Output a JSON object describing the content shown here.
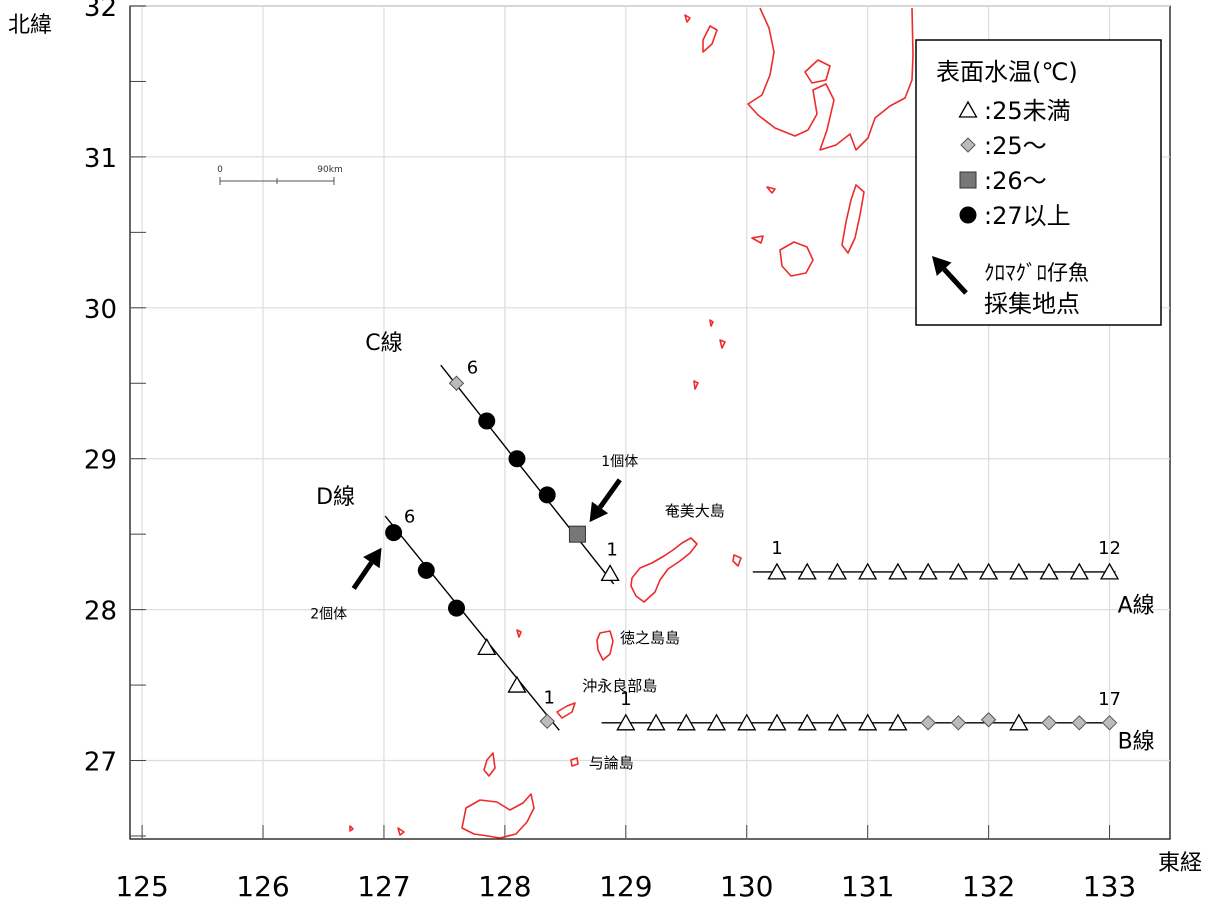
{
  "axis": {
    "y_title": "北緯",
    "x_title": "東経",
    "x_ticks": [
      125,
      126,
      127,
      128,
      129,
      130,
      131,
      132,
      133
    ],
    "y_ticks": [
      27,
      28,
      29,
      30,
      31,
      32
    ],
    "x_range": [
      124.9,
      133.5
    ],
    "y_range": [
      26.48,
      32.0
    ]
  },
  "legend": {
    "title": "表面水温(℃)",
    "items": [
      {
        "symbol": "triangle",
        "label": ":25未満"
      },
      {
        "symbol": "diamond",
        "label": ":25～"
      },
      {
        "symbol": "square",
        "label": ":26～"
      },
      {
        "symbol": "circle",
        "label": ":27以上"
      }
    ],
    "arrow_label_line1": "ｸﾛﾏｸﾞﾛ仔魚",
    "arrow_label_line2": "採集地点"
  },
  "scale_bar": {
    "start_label": "0",
    "end_label": "90km"
  },
  "islands": [
    {
      "name": "奄美大島",
      "lon": 129.57,
      "lat": 28.62
    },
    {
      "name": "徳之島島",
      "lon": 129.2,
      "lat": 27.78
    },
    {
      "name": "沖永良部島",
      "lon": 128.95,
      "lat": 27.46
    },
    {
      "name": "与論島",
      "lon": 128.88,
      "lat": 26.95
    }
  ],
  "lines": [
    {
      "name": "A線",
      "label_lon": 133.22,
      "label_lat": 27.98,
      "start_label": "1",
      "end_label": "12",
      "line": [
        [
          130.05,
          28.25
        ],
        [
          133.05,
          28.25
        ]
      ],
      "stations": [
        {
          "lon": 130.25,
          "lat": 28.25,
          "sst": "triangle"
        },
        {
          "lon": 130.5,
          "lat": 28.25,
          "sst": "triangle"
        },
        {
          "lon": 130.75,
          "lat": 28.25,
          "sst": "triangle"
        },
        {
          "lon": 131.0,
          "lat": 28.25,
          "sst": "triangle"
        },
        {
          "lon": 131.25,
          "lat": 28.25,
          "sst": "triangle"
        },
        {
          "lon": 131.5,
          "lat": 28.25,
          "sst": "triangle"
        },
        {
          "lon": 131.75,
          "lat": 28.25,
          "sst": "triangle"
        },
        {
          "lon": 132.0,
          "lat": 28.25,
          "sst": "triangle"
        },
        {
          "lon": 132.25,
          "lat": 28.25,
          "sst": "triangle"
        },
        {
          "lon": 132.5,
          "lat": 28.25,
          "sst": "triangle"
        },
        {
          "lon": 132.75,
          "lat": 28.25,
          "sst": "triangle"
        },
        {
          "lon": 133.0,
          "lat": 28.25,
          "sst": "triangle"
        }
      ]
    },
    {
      "name": "B線",
      "label_lon": 133.22,
      "label_lat": 27.08,
      "start_label": "1",
      "end_label": "17",
      "line": [
        [
          128.8,
          27.25
        ],
        [
          133.05,
          27.25
        ]
      ],
      "stations": [
        {
          "lon": 129.0,
          "lat": 27.25,
          "sst": "triangle"
        },
        {
          "lon": 129.25,
          "lat": 27.25,
          "sst": "triangle"
        },
        {
          "lon": 129.5,
          "lat": 27.25,
          "sst": "triangle"
        },
        {
          "lon": 129.75,
          "lat": 27.25,
          "sst": "triangle"
        },
        {
          "lon": 130.0,
          "lat": 27.25,
          "sst": "triangle"
        },
        {
          "lon": 130.25,
          "lat": 27.25,
          "sst": "triangle"
        },
        {
          "lon": 130.5,
          "lat": 27.25,
          "sst": "triangle"
        },
        {
          "lon": 130.75,
          "lat": 27.25,
          "sst": "triangle"
        },
        {
          "lon": 131.0,
          "lat": 27.25,
          "sst": "triangle"
        },
        {
          "lon": 131.25,
          "lat": 27.25,
          "sst": "triangle"
        },
        {
          "lon": 131.5,
          "lat": 27.25,
          "sst": "diamond"
        },
        {
          "lon": 131.75,
          "lat": 27.25,
          "sst": "diamond"
        },
        {
          "lon": 132.0,
          "lat": 27.27,
          "sst": "diamond"
        },
        {
          "lon": 132.25,
          "lat": 27.25,
          "sst": "triangle"
        },
        {
          "lon": 132.5,
          "lat": 27.25,
          "sst": "diamond"
        },
        {
          "lon": 132.75,
          "lat": 27.25,
          "sst": "diamond"
        },
        {
          "lon": 133.0,
          "lat": 27.25,
          "sst": "diamond"
        }
      ]
    },
    {
      "name": "C線",
      "label_lon": 127.0,
      "label_lat": 29.72,
      "start_label": "1",
      "end_label": "6",
      "line": [
        [
          127.47,
          29.62
        ],
        [
          128.9,
          28.17
        ]
      ],
      "stations": [
        {
          "lon": 128.87,
          "lat": 28.24,
          "sst": "triangle"
        },
        {
          "lon": 128.6,
          "lat": 28.5,
          "sst": "square"
        },
        {
          "lon": 128.35,
          "lat": 28.76,
          "sst": "circle"
        },
        {
          "lon": 128.1,
          "lat": 29.0,
          "sst": "circle"
        },
        {
          "lon": 127.85,
          "lat": 29.25,
          "sst": "circle"
        },
        {
          "lon": 127.6,
          "lat": 29.5,
          "sst": "diamond"
        }
      ]
    },
    {
      "name": "D線",
      "label_lon": 126.6,
      "label_lat": 28.7,
      "start_label": "1",
      "end_label": "6",
      "line": [
        [
          127.01,
          28.62
        ],
        [
          128.45,
          27.2
        ]
      ],
      "stations": [
        {
          "lon": 128.35,
          "lat": 27.26,
          "sst": "diamond"
        },
        {
          "lon": 128.1,
          "lat": 27.5,
          "sst": "triangle"
        },
        {
          "lon": 127.85,
          "lat": 27.75,
          "sst": "triangle"
        },
        {
          "lon": 127.6,
          "lat": 28.01,
          "sst": "circle"
        },
        {
          "lon": 127.35,
          "lat": 28.26,
          "sst": "circle"
        },
        {
          "lon": 127.08,
          "lat": 28.51,
          "sst": "circle"
        }
      ]
    }
  ],
  "catch_points": [
    {
      "label": "1個体",
      "tip_lon": 128.7,
      "tip_lat": 28.58,
      "tail_lon": 128.95,
      "tail_lat": 28.86
    },
    {
      "label": "2個体",
      "tip_lon": 126.98,
      "tip_lat": 28.41,
      "tail_lon": 126.75,
      "tail_lat": 28.14
    }
  ]
}
